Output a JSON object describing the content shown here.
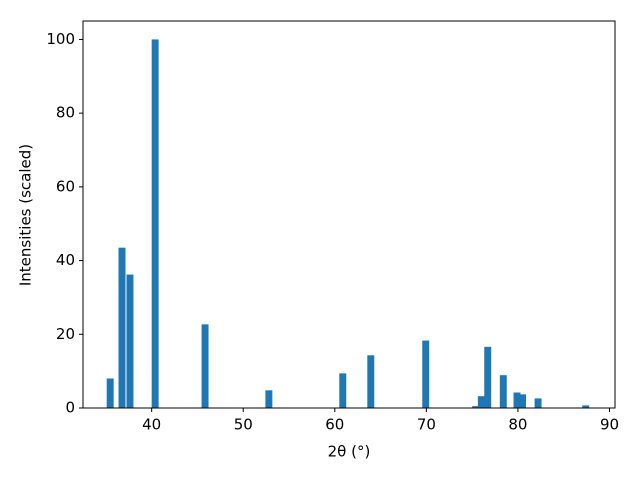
{
  "chart_data": {
    "type": "bar",
    "x_label": "2θ (°)",
    "y_label": "Intensities (scaled)",
    "x": [
      35.47,
      36.76,
      37.63,
      40.38,
      45.83,
      52.8,
      60.87,
      63.93,
      69.93,
      75.38,
      76.0,
      76.7,
      78.4,
      79.9,
      80.5,
      82.2,
      87.4
    ],
    "values": [
      8,
      43.5,
      36.2,
      100,
      22.7,
      4.8,
      9.4,
      14.3,
      18.3,
      0.5,
      3.2,
      16.6,
      8.9,
      4.2,
      3.7,
      2.6,
      0.7
    ],
    "bar_width": 0.76,
    "color": "#1f77b4",
    "xlim": [
      32.5,
      90.6
    ],
    "ylim": [
      0,
      105
    ],
    "xticks": [
      40,
      50,
      60,
      70,
      80,
      90
    ],
    "yticks": [
      0,
      20,
      40,
      60,
      80,
      100
    ],
    "grid": false
  }
}
